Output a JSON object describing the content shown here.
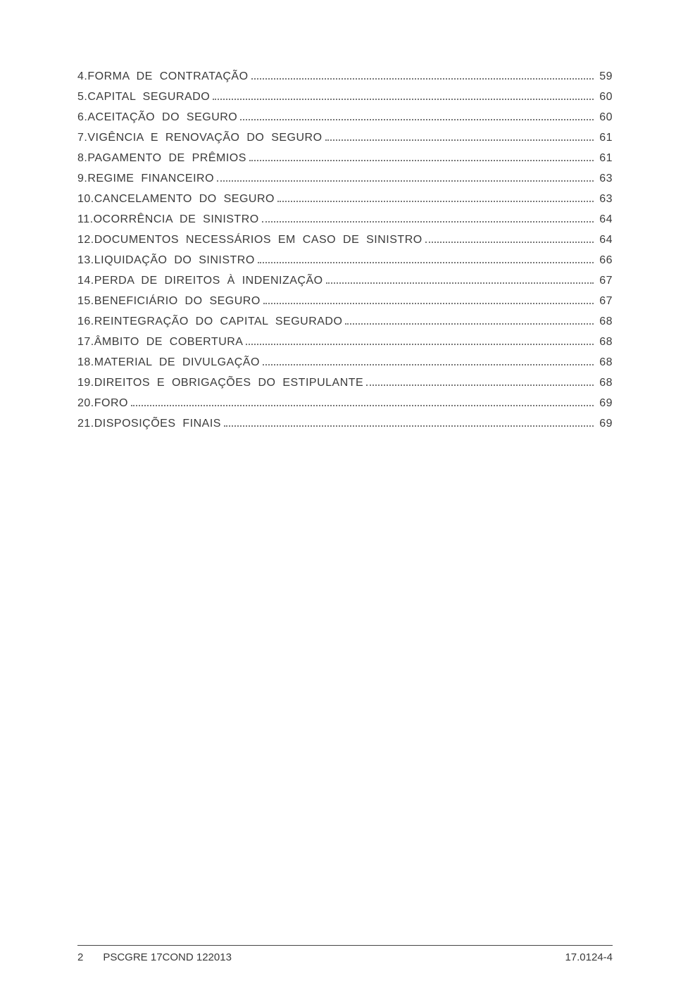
{
  "toc": {
    "entries": [
      {
        "num": "4.",
        "label": "FORMA  DE  CONTRATAÇÃO",
        "page": "59"
      },
      {
        "num": "5.",
        "label": "CAPITAL  SEGURADO",
        "page": "60"
      },
      {
        "num": "6.",
        "label": "ACEITAÇÃO  DO  SEGURO",
        "page": "60"
      },
      {
        "num": "7.",
        "label": "VIGÊNCIA  E  RENOVAÇÃO  DO  SEGURO",
        "page": "61"
      },
      {
        "num": "8.",
        "label": "PAGAMENTO  DE  PRÊMIOS",
        "page": "61"
      },
      {
        "num": "9.",
        "label": "REGIME  FINANCEIRO",
        "page": "63"
      },
      {
        "num": "10.",
        "label": "CANCELAMENTO  DO  SEGURO",
        "page": "63"
      },
      {
        "num": "11.",
        "label": "OCORRÊNCIA  DE  SINISTRO",
        "page": "64"
      },
      {
        "num": "12.",
        "label": "DOCUMENTOS  NECESSÁRIOS  EM  CASO  DE  SINISTRO",
        "page": "64"
      },
      {
        "num": "13.",
        "label": "LIQUIDAÇÃO  DO  SINISTRO",
        "page": "66"
      },
      {
        "num": "14.",
        "label": "PERDA  DE  DIREITOS  À  INDENIZAÇÃO",
        "page": "67"
      },
      {
        "num": "15.",
        "label": "BENEFICIÁRIO  DO  SEGURO",
        "page": "67"
      },
      {
        "num": "16.",
        "label": "REINTEGRAÇÃO  DO  CAPITAL  SEGURADO",
        "page": "68"
      },
      {
        "num": "17.",
        "label": "ÂMBITO  DE  COBERTURA",
        "page": "68"
      },
      {
        "num": "18.",
        "label": "MATERIAL  DE  DIVULGAÇÃO",
        "page": "68"
      },
      {
        "num": "19.",
        "label": "DIREITOS  E  OBRIGAÇÕES  DO  ESTIPULANTE",
        "page": "68"
      },
      {
        "num": "20.",
        "label": "FORO",
        "page": "69"
      },
      {
        "num": "21.",
        "label": "DISPOSIÇÕES  FINAIS",
        "page": "69"
      }
    ]
  },
  "footer": {
    "page_number": "2",
    "doc_code": "PSCGRE 17COND 122013",
    "ref": "17.0124-4"
  },
  "style": {
    "text_color": "#3a3a3a",
    "dot_color": "#777777",
    "background": "#ffffff",
    "font_size_body": 16,
    "font_size_footer": 15
  }
}
